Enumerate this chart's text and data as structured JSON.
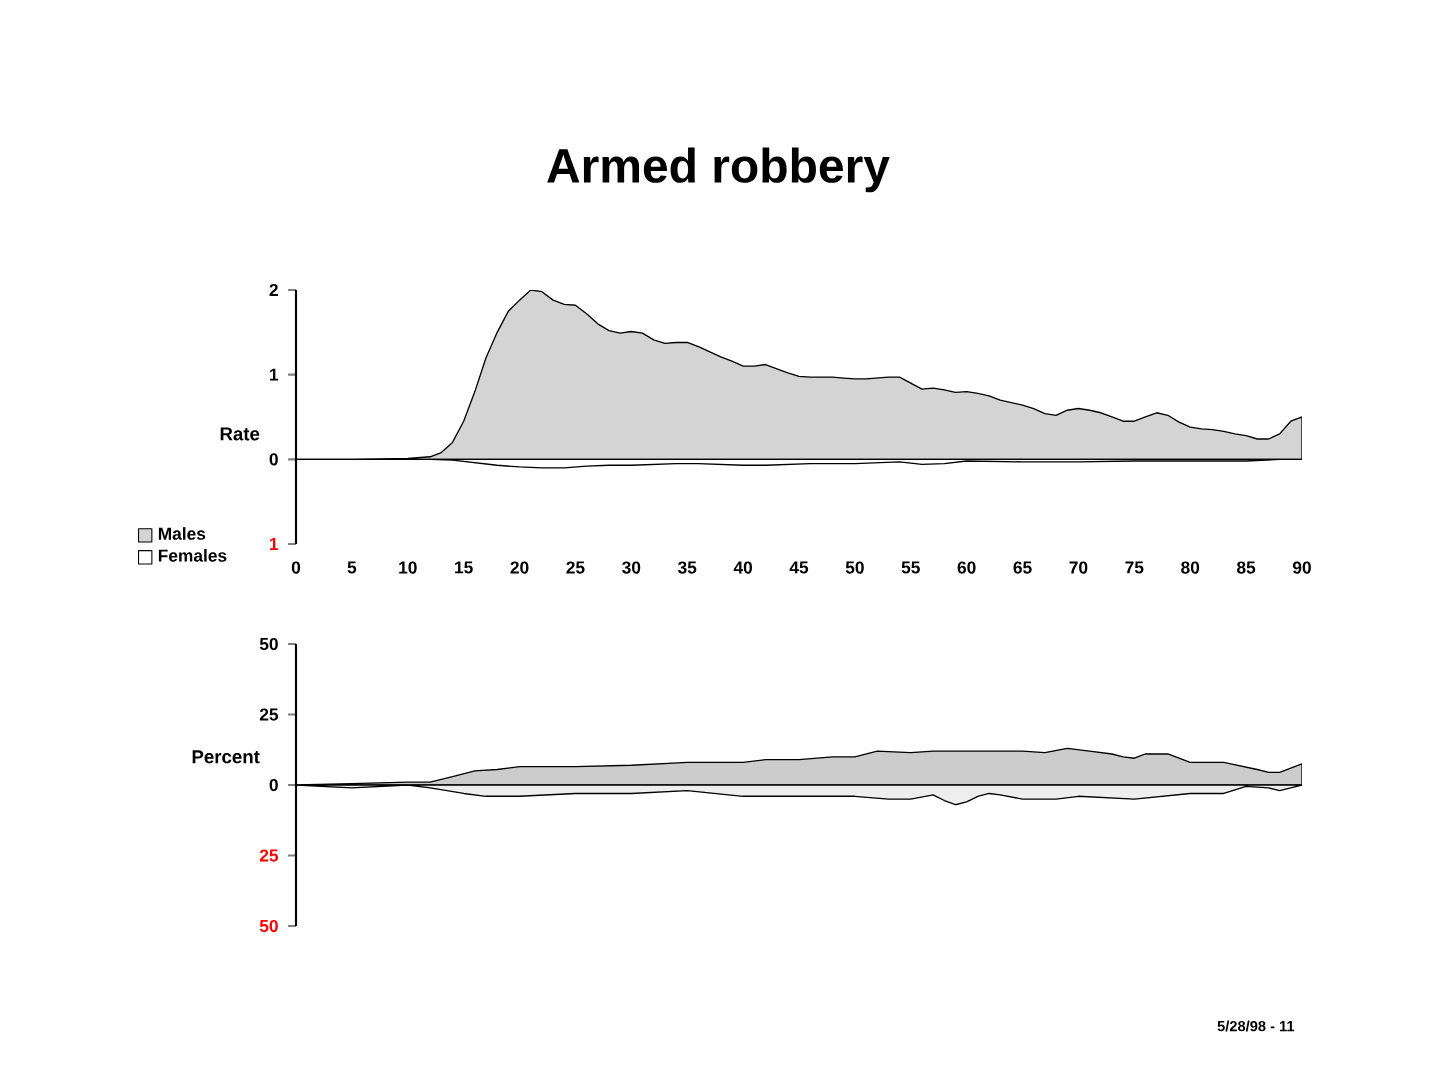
{
  "chart_data": [
    {
      "type": "area",
      "title": "Armed robbery",
      "ylabel": "Rate",
      "xlim": [
        0,
        90
      ],
      "xticks": [
        0,
        5,
        10,
        15,
        20,
        25,
        30,
        35,
        40,
        45,
        50,
        55,
        60,
        65,
        70,
        75,
        80,
        85,
        90
      ],
      "ylim": [
        -1,
        2
      ],
      "yticks": [
        2,
        1,
        0,
        {
          "value": -1,
          "label": "1"
        }
      ],
      "legend": "left",
      "series": [
        {
          "name": "Males",
          "color": "#d4d4d4",
          "x": [
            0,
            5,
            10,
            12,
            13,
            14,
            15,
            16,
            17,
            18,
            19,
            20,
            21,
            22,
            23,
            24,
            25,
            26,
            27,
            28,
            29,
            30,
            31,
            32,
            33,
            34,
            35,
            36,
            37,
            38,
            39,
            40,
            41,
            42,
            43,
            44,
            45,
            46,
            47,
            48,
            49,
            50,
            51,
            52,
            53,
            54,
            55,
            56,
            57,
            58,
            59,
            60,
            61,
            62,
            63,
            64,
            65,
            66,
            67,
            68,
            69,
            70,
            71,
            72,
            73,
            74,
            75,
            76,
            77,
            78,
            79,
            80,
            81,
            82,
            83,
            84,
            85,
            86,
            87,
            88,
            89,
            90
          ],
          "values": [
            0,
            0,
            0.01,
            0.03,
            0.08,
            0.2,
            0.45,
            0.8,
            1.2,
            1.5,
            1.75,
            1.88,
            2.0,
            1.98,
            1.88,
            1.83,
            1.82,
            1.72,
            1.6,
            1.52,
            1.49,
            1.51,
            1.49,
            1.41,
            1.37,
            1.38,
            1.38,
            1.33,
            1.27,
            1.21,
            1.16,
            1.1,
            1.1,
            1.12,
            1.07,
            1.02,
            0.98,
            0.97,
            0.97,
            0.97,
            0.96,
            0.95,
            0.95,
            0.96,
            0.97,
            0.97,
            0.9,
            0.83,
            0.84,
            0.82,
            0.79,
            0.8,
            0.78,
            0.75,
            0.7,
            0.67,
            0.64,
            0.6,
            0.54,
            0.52,
            0.58,
            0.6,
            0.58,
            0.55,
            0.5,
            0.45,
            0.45,
            0.5,
            0.55,
            0.52,
            0.44,
            0.38,
            0.36,
            0.35,
            0.33,
            0.3,
            0.28,
            0.24,
            0.24,
            0.3,
            0.45,
            0.5
          ]
        },
        {
          "name": "Females",
          "color": "#ffffff",
          "x": [
            0,
            12,
            14,
            16,
            18,
            20,
            22,
            24,
            26,
            28,
            30,
            32,
            34,
            36,
            38,
            40,
            42,
            44,
            46,
            50,
            54,
            56,
            58,
            60,
            65,
            70,
            75,
            80,
            85,
            88,
            90
          ],
          "values": [
            0,
            0,
            -0.01,
            -0.04,
            -0.07,
            -0.09,
            -0.1,
            -0.1,
            -0.08,
            -0.07,
            -0.07,
            -0.06,
            -0.05,
            -0.05,
            -0.06,
            -0.07,
            -0.07,
            -0.06,
            -0.05,
            -0.05,
            -0.03,
            -0.06,
            -0.05,
            -0.02,
            -0.03,
            -0.03,
            -0.02,
            -0.02,
            -0.02,
            0,
            0
          ]
        }
      ]
    },
    {
      "type": "area",
      "ylabel": "Percent",
      "xlim": [
        0,
        90
      ],
      "tick_labels": "y",
      "ylim": [
        -50,
        50
      ],
      "yticks": [
        50,
        25,
        0,
        {
          "value": -25,
          "label": "25"
        },
        {
          "value": -50,
          "label": "50"
        }
      ],
      "annotations": [
        "5/28/98 - 11"
      ],
      "series": [
        {
          "color": "#cccccc",
          "x": [
            0,
            5,
            10,
            12,
            14,
            16,
            18,
            20,
            25,
            30,
            35,
            38,
            40,
            42,
            45,
            48,
            50,
            52,
            55,
            57,
            60,
            65,
            67,
            69,
            71,
            73,
            74,
            75,
            76,
            78,
            80,
            83,
            86,
            87,
            88,
            89,
            90
          ],
          "values": [
            0,
            0.5,
            1,
            1,
            3,
            5,
            5.5,
            6.5,
            6.5,
            7,
            8,
            8,
            8,
            9,
            9,
            10,
            10,
            12,
            11.5,
            12,
            12,
            12,
            11.5,
            13,
            12,
            11,
            10,
            9.5,
            11,
            11,
            8,
            8,
            5.5,
            4.5,
            4.5,
            6,
            7.5
          ]
        },
        {
          "color": "#eeeeee",
          "x": [
            0,
            5,
            10,
            12,
            15,
            17,
            20,
            25,
            30,
            35,
            40,
            45,
            50,
            53,
            55,
            57,
            58,
            59,
            60,
            61,
            62,
            63,
            65,
            68,
            70,
            75,
            80,
            83,
            85,
            87,
            88,
            89,
            90
          ],
          "values": [
            0,
            -1,
            0,
            -1,
            -3,
            -4,
            -4,
            -3,
            -3,
            -2,
            -4,
            -4,
            -4,
            -5,
            -5,
            -3.5,
            -5.5,
            -7,
            -6,
            -4,
            -3,
            -3.5,
            -5,
            -5,
            -4,
            -5,
            -3,
            -3,
            -0.5,
            -1,
            -2,
            -1,
            0
          ]
        }
      ]
    }
  ]
}
